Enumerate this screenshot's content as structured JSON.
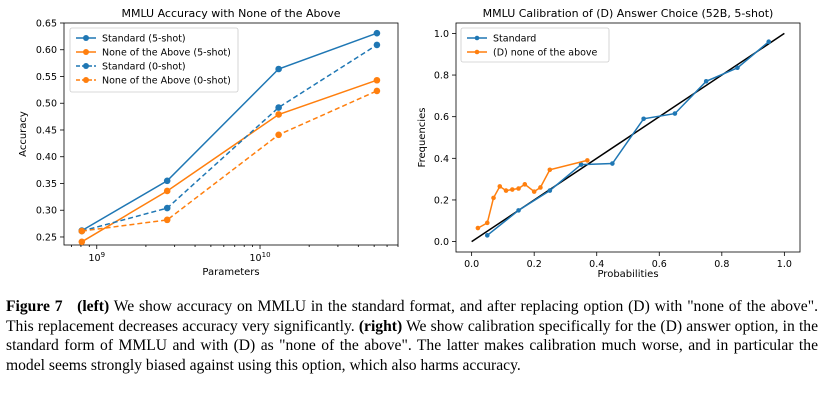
{
  "chart_data": [
    {
      "type": "line",
      "title": "MMLU Accuracy with None of the Above",
      "xlabel": "Parameters",
      "ylabel": "Accuracy",
      "xscale": "log",
      "xlim": [
        630000000.0,
        70000000000.0
      ],
      "ylim": [
        0.235,
        0.65
      ],
      "yticks": [
        "0.25",
        "0.30",
        "0.35",
        "0.40",
        "0.45",
        "0.50",
        "0.55",
        "0.60",
        "0.65"
      ],
      "xtick_labels": [
        "10^9",
        "10^10"
      ],
      "legend_placement": "upper-left",
      "grid": false,
      "series": [
        {
          "name": "Standard (5-shot)",
          "color": "#1f77b4",
          "linestyle": "solid",
          "x": [
            810000000.0,
            2700000000.0,
            13000000000.0,
            52000000000.0
          ],
          "y": [
            0.262,
            0.355,
            0.564,
            0.631
          ]
        },
        {
          "name": "None of the Above (5-shot)",
          "color": "#ff7f0e",
          "linestyle": "solid",
          "x": [
            810000000.0,
            2700000000.0,
            13000000000.0,
            52000000000.0
          ],
          "y": [
            0.241,
            0.336,
            0.479,
            0.543
          ]
        },
        {
          "name": "Standard (0-shot)",
          "color": "#1f77b4",
          "linestyle": "dashed",
          "x": [
            810000000.0,
            2700000000.0,
            13000000000.0,
            52000000000.0
          ],
          "y": [
            0.261,
            0.304,
            0.492,
            0.609
          ]
        },
        {
          "name": "None of the Above (0-shot)",
          "color": "#ff7f0e",
          "linestyle": "dashed",
          "x": [
            810000000.0,
            2700000000.0,
            13000000000.0,
            52000000000.0
          ],
          "y": [
            0.261,
            0.282,
            0.441,
            0.523
          ]
        }
      ]
    },
    {
      "type": "line",
      "title": "MMLU Calibration of (D) Answer Choice (52B, 5-shot)",
      "xlabel": "Probabilities",
      "ylabel": "Frequencies",
      "xlim": [
        -0.05,
        1.05
      ],
      "ylim": [
        -0.05,
        1.05
      ],
      "xticks": [
        "0.0",
        "0.2",
        "0.4",
        "0.6",
        "0.8",
        "1.0"
      ],
      "yticks": [
        "0.0",
        "0.2",
        "0.4",
        "0.6",
        "0.8",
        "1.0"
      ],
      "legend_placement": "upper-left",
      "grid": false,
      "diagonal": {
        "color": "#000000",
        "from": [
          0,
          0
        ],
        "to": [
          1,
          1
        ]
      },
      "series": [
        {
          "name": "Standard",
          "color": "#1f77b4",
          "x": [
            0.05,
            0.15,
            0.25,
            0.35,
            0.45,
            0.55,
            0.65,
            0.75,
            0.85,
            0.95
          ],
          "y": [
            0.03,
            0.15,
            0.245,
            0.37,
            0.375,
            0.59,
            0.615,
            0.77,
            0.835,
            0.96
          ]
        },
        {
          "name": "(D) none of the above",
          "color": "#ff7f0e",
          "x": [
            0.02,
            0.05,
            0.07,
            0.09,
            0.11,
            0.13,
            0.15,
            0.17,
            0.2,
            0.22,
            0.25,
            0.37
          ],
          "y": [
            0.065,
            0.09,
            0.21,
            0.265,
            0.245,
            0.25,
            0.255,
            0.275,
            0.24,
            0.26,
            0.345,
            0.39
          ]
        }
      ]
    }
  ],
  "caption": {
    "figure_label": "Figure 7",
    "left_label": "(left)",
    "left_text": " We show accuracy on MMLU in the standard format, and after replacing option (D) with \"none of the above\". This replacement decreases accuracy very significantly. ",
    "right_label": "(right)",
    "right_text": " We show calibration specifically for the (D) answer option, in the standard form of MMLU and with (D) as \"none of the above\". The latter makes calibration much worse, and in particular the model seems strongly biased against using this option, which also harms accuracy."
  }
}
